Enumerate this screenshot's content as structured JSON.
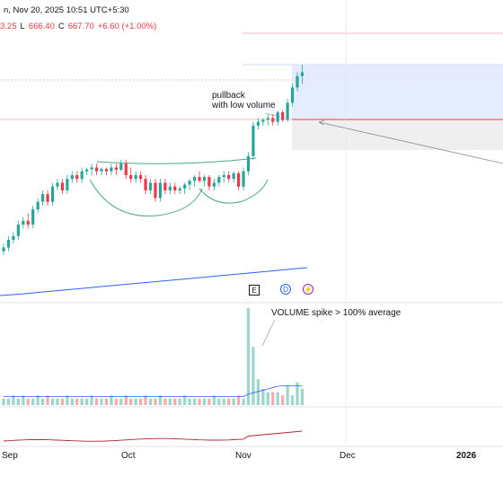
{
  "header": {
    "title_fragment": "n, Nov 20, 2025 10:51 UTC+5:30",
    "ohlc": {
      "open": "3.25",
      "low_label": "L",
      "low": "666.40",
      "close_label": "C",
      "close": "667.70",
      "change": "+6.60 (+1.00%)"
    }
  },
  "annotations": {
    "pullback_line1": "pullback",
    "pullback_line2": "with low volume",
    "volume_spike": "VOLUME spike > 100% average"
  },
  "events": {
    "earnings": "E",
    "dividend": "D",
    "split": "⚡"
  },
  "x_axis": {
    "labels": [
      {
        "text": "Sep",
        "bold": false
      },
      {
        "text": "Oct",
        "bold": false
      },
      {
        "text": "Nov",
        "bold": false
      },
      {
        "text": "Dec",
        "bold": false
      },
      {
        "text": "2026",
        "bold": true
      }
    ]
  },
  "colors": {
    "up": "#26a69a",
    "down": "#f23645",
    "volume_up": "#9bd5cc",
    "volume_down": "#f7a9ae",
    "ma": "#2962ff",
    "pattern_line": "#4aa58c",
    "rsi": "#b22833",
    "box_blue": "#dbe6fd",
    "box_gray": "#eeeeee"
  },
  "chart_data": {
    "type": "candlestick",
    "candles": [
      {
        "o": 1,
        "h": 3,
        "l": 0,
        "c": 2
      },
      {
        "o": 2,
        "h": 5,
        "l": 1,
        "c": 4
      },
      {
        "o": 4,
        "h": 6,
        "l": 3,
        "c": 5
      },
      {
        "o": 5,
        "h": 9,
        "l": 4,
        "c": 8
      },
      {
        "o": 8,
        "h": 10,
        "l": 7,
        "c": 9
      },
      {
        "o": 9,
        "h": 11,
        "l": 7,
        "c": 8
      },
      {
        "o": 8,
        "h": 13,
        "l": 7,
        "c": 12
      },
      {
        "o": 12,
        "h": 15,
        "l": 11,
        "c": 14
      },
      {
        "o": 14,
        "h": 17,
        "l": 13,
        "c": 16
      },
      {
        "o": 16,
        "h": 17,
        "l": 13,
        "c": 14
      },
      {
        "o": 14,
        "h": 19,
        "l": 13,
        "c": 18
      },
      {
        "o": 18,
        "h": 20,
        "l": 17,
        "c": 19
      },
      {
        "o": 19,
        "h": 20,
        "l": 16,
        "c": 17
      },
      {
        "o": 17,
        "h": 21,
        "l": 16,
        "c": 20
      },
      {
        "o": 20,
        "h": 22,
        "l": 19,
        "c": 21
      },
      {
        "o": 21,
        "h": 22,
        "l": 19,
        "c": 20
      },
      {
        "o": 20,
        "h": 23,
        "l": 19,
        "c": 22
      },
      {
        "o": 22,
        "h": 23,
        "l": 21,
        "c": 22.5
      },
      {
        "o": 22.5,
        "h": 24,
        "l": 21,
        "c": 23
      },
      {
        "o": 23,
        "h": 24,
        "l": 21,
        "c": 22
      },
      {
        "o": 22,
        "h": 23,
        "l": 21,
        "c": 22.6
      },
      {
        "o": 22.6,
        "h": 23,
        "l": 21,
        "c": 22
      },
      {
        "o": 22,
        "h": 24,
        "l": 21,
        "c": 23
      },
      {
        "o": 23,
        "h": 24,
        "l": 21,
        "c": 22.4
      },
      {
        "o": 22.4,
        "h": 25,
        "l": 22,
        "c": 24
      },
      {
        "o": 24,
        "h": 25,
        "l": 20,
        "c": 21
      },
      {
        "o": 21,
        "h": 23,
        "l": 19,
        "c": 20
      },
      {
        "o": 20,
        "h": 22,
        "l": 19,
        "c": 21
      },
      {
        "o": 21,
        "h": 22,
        "l": 19,
        "c": 20
      },
      {
        "o": 20,
        "h": 21,
        "l": 16,
        "c": 17
      },
      {
        "o": 17,
        "h": 20,
        "l": 16,
        "c": 19
      },
      {
        "o": 19,
        "h": 20,
        "l": 14,
        "c": 15
      },
      {
        "o": 15,
        "h": 20,
        "l": 14,
        "c": 19
      },
      {
        "o": 19,
        "h": 20,
        "l": 16,
        "c": 17
      },
      {
        "o": 17,
        "h": 19,
        "l": 16,
        "c": 18
      },
      {
        "o": 18,
        "h": 19,
        "l": 16,
        "c": 17
      },
      {
        "o": 17,
        "h": 18,
        "l": 16,
        "c": 17.5
      },
      {
        "o": 17.5,
        "h": 19,
        "l": 16,
        "c": 18.5
      },
      {
        "o": 18.5,
        "h": 20,
        "l": 17,
        "c": 19.5
      },
      {
        "o": 19.5,
        "h": 21,
        "l": 18,
        "c": 20.5
      },
      {
        "o": 20.5,
        "h": 22,
        "l": 19,
        "c": 19.5
      },
      {
        "o": 19.5,
        "h": 21,
        "l": 18,
        "c": 20.5
      },
      {
        "o": 20.5,
        "h": 21,
        "l": 17,
        "c": 18
      },
      {
        "o": 18,
        "h": 20,
        "l": 17,
        "c": 19
      },
      {
        "o": 19,
        "h": 21,
        "l": 18,
        "c": 20.5
      },
      {
        "o": 20.5,
        "h": 22,
        "l": 19,
        "c": 21
      },
      {
        "o": 21,
        "h": 22,
        "l": 19,
        "c": 20
      },
      {
        "o": 20,
        "h": 22,
        "l": 19,
        "c": 21.5
      },
      {
        "o": 21.5,
        "h": 22,
        "l": 17,
        "c": 18
      },
      {
        "o": 18,
        "h": 23,
        "l": 17,
        "c": 22
      },
      {
        "o": 22,
        "h": 27,
        "l": 21,
        "c": 26
      },
      {
        "o": 26,
        "h": 35,
        "l": 25,
        "c": 34
      },
      {
        "o": 34,
        "h": 36,
        "l": 33,
        "c": 35
      },
      {
        "o": 35,
        "h": 36,
        "l": 34,
        "c": 35.5
      },
      {
        "o": 35.5,
        "h": 37,
        "l": 34,
        "c": 36
      },
      {
        "o": 36,
        "h": 37,
        "l": 34,
        "c": 35
      },
      {
        "o": 35,
        "h": 38,
        "l": 34,
        "c": 37.5
      },
      {
        "o": 37.5,
        "h": 38,
        "l": 35,
        "c": 35.5
      },
      {
        "o": 35.5,
        "h": 41,
        "l": 35,
        "c": 40
      },
      {
        "o": 40,
        "h": 45,
        "l": 39,
        "c": 44
      },
      {
        "o": 44,
        "h": 48,
        "l": 43,
        "c": 47
      },
      {
        "o": 47,
        "h": 50,
        "l": 45,
        "c": 48
      }
    ],
    "volume": [
      2,
      2,
      3,
      2,
      3,
      2,
      2,
      3,
      2,
      3,
      2,
      2,
      2,
      3,
      2,
      2,
      2,
      2,
      3,
      2,
      2,
      2,
      3,
      2,
      2,
      3,
      2,
      2,
      2,
      3,
      2,
      2,
      3,
      2,
      2,
      2,
      2,
      3,
      2,
      2,
      2,
      2,
      2,
      3,
      2,
      2,
      2,
      2,
      3,
      2,
      30,
      18,
      8,
      5,
      4,
      4,
      4,
      3,
      6,
      3,
      7,
      5
    ],
    "ma": [
      5,
      5.3,
      5.6,
      6,
      6.4,
      6.8,
      7.2,
      7.6,
      8,
      8.4,
      8.8,
      9.2,
      9.6,
      10,
      10.4,
      10.8,
      11.2,
      11.6,
      12,
      12.4,
      12.8,
      13.2,
      13.6,
      14,
      14.4,
      14.8,
      15.2,
      15.6,
      16,
      16.4,
      16.8,
      17.2
    ]
  }
}
